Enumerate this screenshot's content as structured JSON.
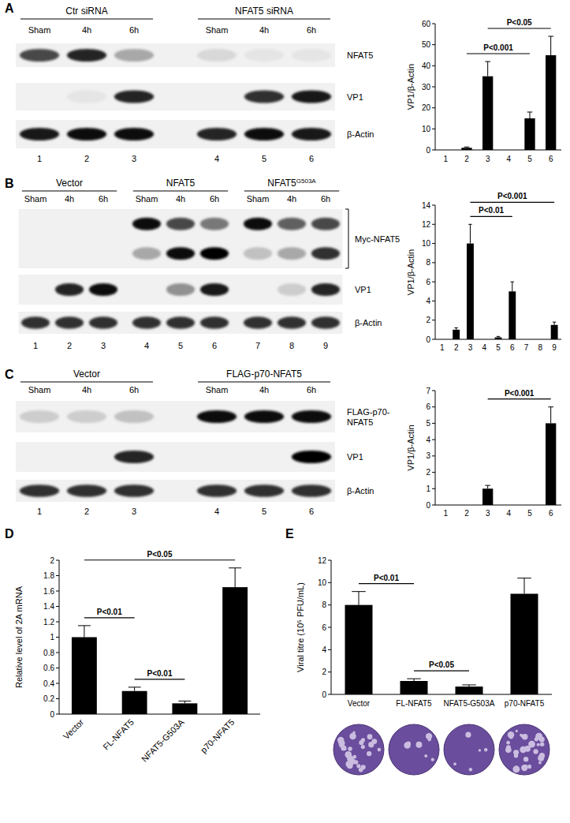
{
  "panel_labels": [
    "A",
    "B",
    "C",
    "D",
    "E"
  ],
  "blots": [
    {
      "groups": [
        {
          "label": "Ctr siRNA",
          "lanes": [
            "Sham",
            "4h",
            "6h"
          ]
        },
        {
          "label": "NFAT5 siRNA",
          "lanes": [
            "Sham",
            "4h",
            "6h"
          ]
        }
      ],
      "rows": [
        {
          "label": "NFAT5",
          "bands": [
            [
              0.7,
              0.85,
              0.3,
              0.1,
              0.05,
              0.05
            ]
          ]
        },
        {
          "label": "VP1",
          "bands": [
            [
              0,
              0.05,
              0.85,
              0,
              0.8,
              0.9
            ]
          ]
        },
        {
          "label": "β-Actin",
          "bands": [
            [
              0.9,
              0.95,
              0.95,
              0.85,
              0.95,
              0.9
            ]
          ]
        }
      ],
      "lane_numbers": [
        "1",
        "2",
        "3",
        "4",
        "5",
        "6"
      ]
    },
    {
      "groups": [
        {
          "label": "Vector",
          "lanes": [
            "Sham",
            "4h",
            "6h"
          ]
        },
        {
          "label": "NFAT5",
          "lanes": [
            "Sham",
            "4h",
            "6h"
          ]
        },
        {
          "label": "NFAT5",
          "superscript": "G503A",
          "lanes": [
            "Sham",
            "4h",
            "6h"
          ]
        }
      ],
      "rows": [
        {
          "label": "Myc-NFAT5",
          "bracket": true,
          "bands": [
            [
              0,
              0,
              0,
              0.95,
              0.7,
              0.5,
              0.95,
              0.6,
              0.7
            ],
            [
              0,
              0,
              0,
              0.3,
              0.95,
              1,
              0.2,
              0.3,
              0.8
            ]
          ]
        },
        {
          "label": "VP1",
          "bands": [
            [
              0,
              0.85,
              0.95,
              0,
              0.4,
              0.9,
              0,
              0.15,
              0.85
            ]
          ]
        },
        {
          "label": "β-Actin",
          "bands": [
            [
              0.8,
              0.8,
              0.8,
              0.8,
              0.8,
              0.8,
              0.8,
              0.8,
              0.8
            ]
          ]
        }
      ],
      "lane_numbers": [
        "1",
        "2",
        "3",
        "4",
        "5",
        "6",
        "7",
        "8",
        "9"
      ]
    },
    {
      "groups": [
        {
          "label": "Vector",
          "lanes": [
            "Sham",
            "4h",
            "6h"
          ]
        },
        {
          "label": "FLAG-p70-NFAT5",
          "lanes": [
            "Sham",
            "4h",
            "6h"
          ]
        }
      ],
      "rows": [
        {
          "label": "FLAG-p70-NFAT5",
          "bands": [
            [
              0.15,
              0.15,
              0.2,
              0.95,
              0.95,
              0.95
            ]
          ]
        },
        {
          "label": "VP1",
          "bands": [
            [
              0,
              0,
              0.85,
              0,
              0,
              1
            ]
          ]
        },
        {
          "label": "β-Actin",
          "bands": [
            [
              0.8,
              0.8,
              0.8,
              0.8,
              0.8,
              0.8
            ]
          ]
        }
      ],
      "lane_numbers": [
        "1",
        "2",
        "3",
        "4",
        "5",
        "6"
      ]
    }
  ],
  "chart_data": [
    {
      "type": "bar",
      "y_label": "VP1/β-Actin",
      "categories": [
        "1",
        "2",
        "3",
        "4",
        "5",
        "6"
      ],
      "values": [
        0,
        1,
        35,
        0,
        15,
        45
      ],
      "errors": [
        0,
        0.4,
        7,
        0,
        3,
        9
      ],
      "color": "#000000",
      "ylim": [
        0,
        60
      ],
      "yticks": [
        0,
        10,
        20,
        30,
        40,
        50,
        60
      ],
      "comparisons": [
        {
          "categories": [
            "2",
            "5"
          ],
          "label": "P<0.001"
        },
        {
          "categories": [
            "3",
            "6"
          ],
          "label": "P<0.05"
        }
      ]
    },
    {
      "type": "bar",
      "y_label": "VP1/β-Actin",
      "categories": [
        "1",
        "2",
        "3",
        "4",
        "5",
        "6",
        "7",
        "8",
        "9"
      ],
      "values": [
        0,
        1,
        10,
        0,
        0.2,
        5,
        0,
        0,
        1.5
      ],
      "errors": [
        0,
        0.2,
        2,
        0,
        0.1,
        1,
        0,
        0,
        0.3
      ],
      "color": "#000000",
      "ylim": [
        0,
        14
      ],
      "yticks": [
        0,
        2,
        4,
        6,
        8,
        10,
        12,
        14
      ],
      "comparisons": [
        {
          "categories": [
            "3",
            "6"
          ],
          "label": "P<0.01"
        },
        {
          "categories": [
            "3",
            "9"
          ],
          "label": "P<0.001"
        }
      ]
    },
    {
      "type": "bar",
      "y_label": "VP1/β-Actin",
      "categories": [
        "1",
        "2",
        "3",
        "4",
        "5",
        "6"
      ],
      "values": [
        0,
        0,
        1,
        0,
        0,
        5
      ],
      "errors": [
        0,
        0,
        0.2,
        0,
        0,
        1
      ],
      "color": "#000000",
      "ylim": [
        0,
        7
      ],
      "yticks": [
        0,
        1,
        2,
        3,
        4,
        5,
        6,
        7
      ],
      "comparisons": [
        {
          "categories": [
            "3",
            "6"
          ],
          "label": "P<0.001"
        }
      ]
    },
    {
      "type": "bar",
      "y_label": "Relative level of 2A mRNA",
      "categories": [
        "Vector",
        "FL-NFAT5",
        "NFAT5-G503A",
        "p70-NFAT5"
      ],
      "values": [
        1,
        0.3,
        0.14,
        1.65
      ],
      "errors": [
        0.15,
        0.05,
        0.03,
        0.25
      ],
      "color": "#000000",
      "ylim": [
        0,
        2
      ],
      "yticks": [
        0,
        0.2,
        0.4,
        0.6,
        0.8,
        1,
        1.2,
        1.4,
        1.6,
        1.8,
        2
      ],
      "comparisons": [
        {
          "categories": [
            "Vector",
            "FL-NFAT5"
          ],
          "label": "P<0.01"
        },
        {
          "categories": [
            "FL-NFAT5",
            "NFAT5-G503A"
          ],
          "label": "P<0.01"
        },
        {
          "categories": [
            "Vector",
            "p70-NFAT5"
          ],
          "label": "P<0.05"
        }
      ]
    },
    {
      "type": "bar",
      "y_label": "Viral titre (10⁵ PFU/mL)",
      "categories": [
        "Vector",
        "FL-NFAT5",
        "NFAT5-G503A",
        "p70-NFAT5"
      ],
      "values": [
        8,
        1.2,
        0.7,
        9
      ],
      "errors": [
        1.2,
        0.2,
        0.15,
        1.4
      ],
      "color": "#000000",
      "ylim": [
        0,
        12
      ],
      "yticks": [
        0,
        2,
        4,
        6,
        8,
        10,
        12
      ],
      "comparisons": [
        {
          "categories": [
            "Vector",
            "FL-NFAT5"
          ],
          "label": "P<0.01"
        },
        {
          "categories": [
            "FL-NFAT5",
            "NFAT5-G503A"
          ],
          "label": "P<0.05"
        }
      ]
    }
  ]
}
